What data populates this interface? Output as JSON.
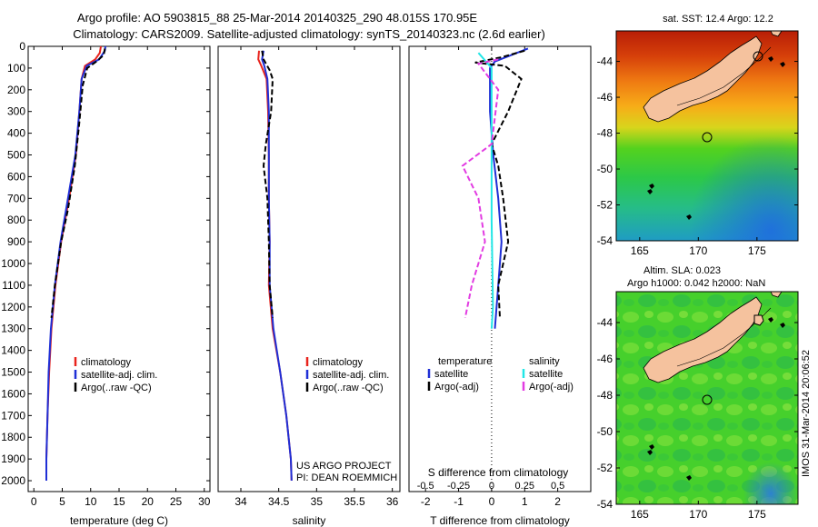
{
  "header": {
    "line1": "Argo profile: AO 5903815_88 25-Mar-2014 20140325_290 48.015S 170.95E",
    "line2": "Climatology: CARS2009. Satellite-adjusted climatology: synTS_20140323.nc (2.6d earlier)"
  },
  "colors": {
    "red": "#e8231c",
    "blue": "#1f2fd6",
    "black": "#000000",
    "cyan": "#22e6e6",
    "magenta": "#e23ce2",
    "land": "#f5c29e"
  },
  "chart_data": [
    {
      "id": "temperature",
      "type": "line",
      "xlabel": "temperature (deg C)",
      "ylabel": "",
      "xlim": [
        -1,
        31
      ],
      "ylim": [
        0,
        2050
      ],
      "xticks": [
        0,
        5,
        10,
        15,
        20,
        25,
        30
      ],
      "yticks": [
        0,
        100,
        200,
        300,
        400,
        500,
        600,
        700,
        800,
        900,
        1000,
        1100,
        1200,
        1300,
        1400,
        1500,
        1600,
        1700,
        1800,
        1900,
        2000
      ],
      "legend": [
        "climatology",
        "satellite-adj. clim.",
        "Argo(..raw -QC)"
      ],
      "series": [
        {
          "name": "climatology",
          "color": "#e8231c",
          "dash": false,
          "points": [
            [
              11.8,
              0
            ],
            [
              11.6,
              30
            ],
            [
              10.8,
              60
            ],
            [
              9.0,
              90
            ],
            [
              8.4,
              150
            ],
            [
              8.0,
              300
            ],
            [
              7.4,
              500
            ],
            [
              6.2,
              700
            ],
            [
              4.8,
              900
            ],
            [
              3.8,
              1100
            ],
            [
              3.1,
              1300
            ],
            [
              2.7,
              1500
            ],
            [
              2.4,
              1700
            ],
            [
              2.2,
              1900
            ],
            [
              2.2,
              2000
            ]
          ]
        },
        {
          "name": "satellite-adj. clim.",
          "color": "#1f2fd6",
          "dash": false,
          "points": [
            [
              12.6,
              0
            ],
            [
              12.5,
              20
            ],
            [
              11.5,
              60
            ],
            [
              9.3,
              90
            ],
            [
              8.4,
              150
            ],
            [
              8.0,
              300
            ],
            [
              7.3,
              500
            ],
            [
              6.0,
              700
            ],
            [
              4.7,
              900
            ],
            [
              3.7,
              1100
            ],
            [
              3.0,
              1300
            ],
            [
              2.6,
              1500
            ],
            [
              2.4,
              1700
            ],
            [
              2.2,
              1900
            ],
            [
              2.2,
              2000
            ]
          ]
        },
        {
          "name": "Argo(..raw -QC)",
          "color": "#000000",
          "dash": true,
          "points": [
            [
              12.5,
              10
            ],
            [
              12.3,
              40
            ],
            [
              11.0,
              70
            ],
            [
              9.4,
              100
            ],
            [
              8.6,
              180
            ],
            [
              8.0,
              350
            ],
            [
              7.2,
              550
            ],
            [
              6.0,
              750
            ],
            [
              4.8,
              900
            ],
            [
              3.7,
              1100
            ],
            [
              3.1,
              1250
            ]
          ]
        }
      ]
    },
    {
      "id": "salinity",
      "type": "line",
      "xlabel": "salinity",
      "ylabel": "",
      "xlim": [
        33.7,
        36.1
      ],
      "ylim": [
        0,
        2050
      ],
      "xticks": [
        34,
        34.5,
        35,
        35.5,
        36
      ],
      "yticks": [],
      "legend": [
        "climatology",
        "satellite-adj. clim.",
        "Argo(..raw -QC)"
      ],
      "annotation": [
        "US ARGO PROJECT",
        "PI: DEAN ROEMMICH"
      ],
      "series": [
        {
          "name": "climatology",
          "color": "#e8231c",
          "dash": false,
          "points": [
            [
              34.24,
              20
            ],
            [
              34.23,
              60
            ],
            [
              34.27,
              90
            ],
            [
              34.34,
              150
            ],
            [
              34.36,
              300
            ],
            [
              34.37,
              500
            ],
            [
              34.37,
              700
            ],
            [
              34.38,
              900
            ],
            [
              34.37,
              1100
            ],
            [
              34.42,
              1300
            ],
            [
              34.52,
              1500
            ],
            [
              34.6,
              1700
            ],
            [
              34.66,
              1900
            ],
            [
              34.67,
              2000
            ]
          ]
        },
        {
          "name": "satellite-adj. clim.",
          "color": "#1f2fd6",
          "dash": false,
          "points": [
            [
              34.3,
              20
            ],
            [
              34.28,
              60
            ],
            [
              34.31,
              90
            ],
            [
              34.35,
              150
            ],
            [
              34.37,
              300
            ],
            [
              34.37,
              500
            ],
            [
              34.37,
              700
            ],
            [
              34.38,
              900
            ],
            [
              34.38,
              1100
            ],
            [
              34.43,
              1300
            ],
            [
              34.52,
              1500
            ],
            [
              34.6,
              1700
            ],
            [
              34.66,
              1900
            ],
            [
              34.67,
              2000
            ]
          ]
        },
        {
          "name": "Argo(..raw -QC)",
          "color": "#000000",
          "dash": true,
          "points": [
            [
              34.28,
              20
            ],
            [
              34.3,
              60
            ],
            [
              34.38,
              110
            ],
            [
              34.42,
              150
            ],
            [
              34.4,
              300
            ],
            [
              34.33,
              450
            ],
            [
              34.3,
              550
            ],
            [
              34.35,
              700
            ],
            [
              34.37,
              900
            ],
            [
              34.38,
              1100
            ],
            [
              34.42,
              1250
            ]
          ]
        }
      ]
    },
    {
      "id": "difference",
      "type": "line",
      "xlabel": "T difference from climatology",
      "x2label": "S difference from climatology",
      "xlim": [
        -2.5,
        3.0
      ],
      "ylim": [
        0,
        2050
      ],
      "xticks": [
        -2,
        -1,
        0,
        1,
        2
      ],
      "xticklabels": [
        "-2",
        "-1",
        "0",
        "1",
        "2"
      ],
      "x2ticks": [
        -0.5,
        -0.25,
        0,
        0.25,
        0.5
      ],
      "legend_left_title": "temperature",
      "legend_right_title": "salinity",
      "legend": [
        "satellite",
        "Argo(-adj)",
        "satellite",
        "Argo(-adj)"
      ],
      "series": [
        {
          "name": "satellite",
          "group": "temperature",
          "color": "#1f2fd6",
          "dash": false,
          "points": [
            [
              1.1,
              10
            ],
            [
              0.6,
              40
            ],
            [
              0.1,
              70
            ],
            [
              -0.05,
              100
            ],
            [
              -0.05,
              300
            ],
            [
              0.05,
              500
            ],
            [
              0.2,
              700
            ],
            [
              0.3,
              900
            ],
            [
              0.2,
              1100
            ],
            [
              0.1,
              1300
            ]
          ]
        },
        {
          "name": "Argo(-adj)",
          "group": "temperature",
          "color": "#000000",
          "dash": true,
          "points": [
            [
              1.0,
              20
            ],
            [
              0.3,
              50
            ],
            [
              -0.5,
              75
            ],
            [
              0.4,
              90
            ],
            [
              0.9,
              150
            ],
            [
              0.5,
              300
            ],
            [
              0.0,
              450
            ],
            [
              0.2,
              550
            ],
            [
              0.35,
              700
            ],
            [
              0.5,
              900
            ],
            [
              0.2,
              1100
            ],
            [
              0.25,
              1250
            ]
          ]
        },
        {
          "name": "satellite",
          "group": "salinity",
          "color": "#22e6e6",
          "dash": false,
          "points": [
            [
              -0.1,
              30
            ],
            [
              0.0,
              100
            ],
            [
              0.0,
              400
            ],
            [
              0.0,
              800
            ],
            [
              0.01,
              1200
            ],
            [
              0.0,
              1300
            ]
          ]
        },
        {
          "name": "Argo(-adj)",
          "group": "salinity",
          "color": "#e23ce2",
          "dash": true,
          "points": [
            [
              0.05,
              60
            ],
            [
              -0.1,
              80
            ],
            [
              0.05,
              200
            ],
            [
              0.0,
              450
            ],
            [
              -0.22,
              550
            ],
            [
              -0.1,
              700
            ],
            [
              -0.05,
              900
            ],
            [
              -0.15,
              1100
            ],
            [
              -0.2,
              1250
            ]
          ]
        }
      ]
    },
    {
      "id": "sst_map",
      "type": "heatmap",
      "title": "sat. SST: 12.4  Argo: 12.2",
      "xlim": [
        163,
        178.5
      ],
      "ylim": [
        -54,
        -42.3
      ],
      "xticks": [
        165,
        170,
        175
      ],
      "yticks": [
        -44,
        -46,
        -48,
        -50,
        -52,
        -54
      ],
      "xticklabels": [
        "165",
        "170",
        "175"
      ],
      "yticklabels": [
        "-44",
        "-46",
        "-48",
        "-50",
        "-52",
        "-54"
      ],
      "float_position": [
        170.95,
        -48.015
      ]
    },
    {
      "id": "sla_map",
      "type": "heatmap",
      "title_line1": "Altim. SLA: 0.023",
      "title_line2": "Argo h1000: 0.042 h2000: NaN",
      "xlim": [
        163,
        178.5
      ],
      "ylim": [
        -54,
        -42.3
      ],
      "xticks": [
        165,
        170,
        175
      ],
      "yticks": [
        -44,
        -46,
        -48,
        -50,
        -52,
        -54
      ],
      "xticklabels": [
        "165",
        "170",
        "175"
      ],
      "yticklabels": [
        "-44",
        "-46",
        "-48",
        "-50",
        "-52",
        "-54"
      ],
      "float_position": [
        170.95,
        -48.015
      ]
    }
  ],
  "footer": {
    "imos_stamp": "IMOS 31-Mar-2014 20:06:52"
  }
}
